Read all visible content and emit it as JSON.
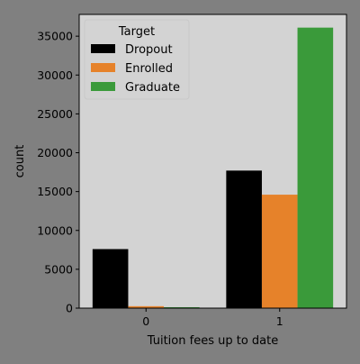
{
  "chart_data": {
    "type": "bar",
    "xlabel": "Tuition fees up to date",
    "ylabel": "count",
    "categories": [
      "0",
      "1"
    ],
    "ylim": [
      0,
      37800
    ],
    "yticks": [
      0,
      5000,
      10000,
      15000,
      20000,
      25000,
      30000,
      35000
    ],
    "grid": false,
    "legend": {
      "title": "Target",
      "position": "top-left"
    },
    "series": [
      {
        "name": "Dropout",
        "color": "#000000",
        "values": [
          7600,
          17700
        ]
      },
      {
        "name": "Enrolled",
        "color": "#e6822a",
        "values": [
          250,
          14600
        ]
      },
      {
        "name": "Graduate",
        "color": "#3a9a3a",
        "values": [
          120,
          36100
        ]
      }
    ],
    "colors": {
      "figure_background": "#808080",
      "plot_background": "#d3d3d3"
    }
  }
}
